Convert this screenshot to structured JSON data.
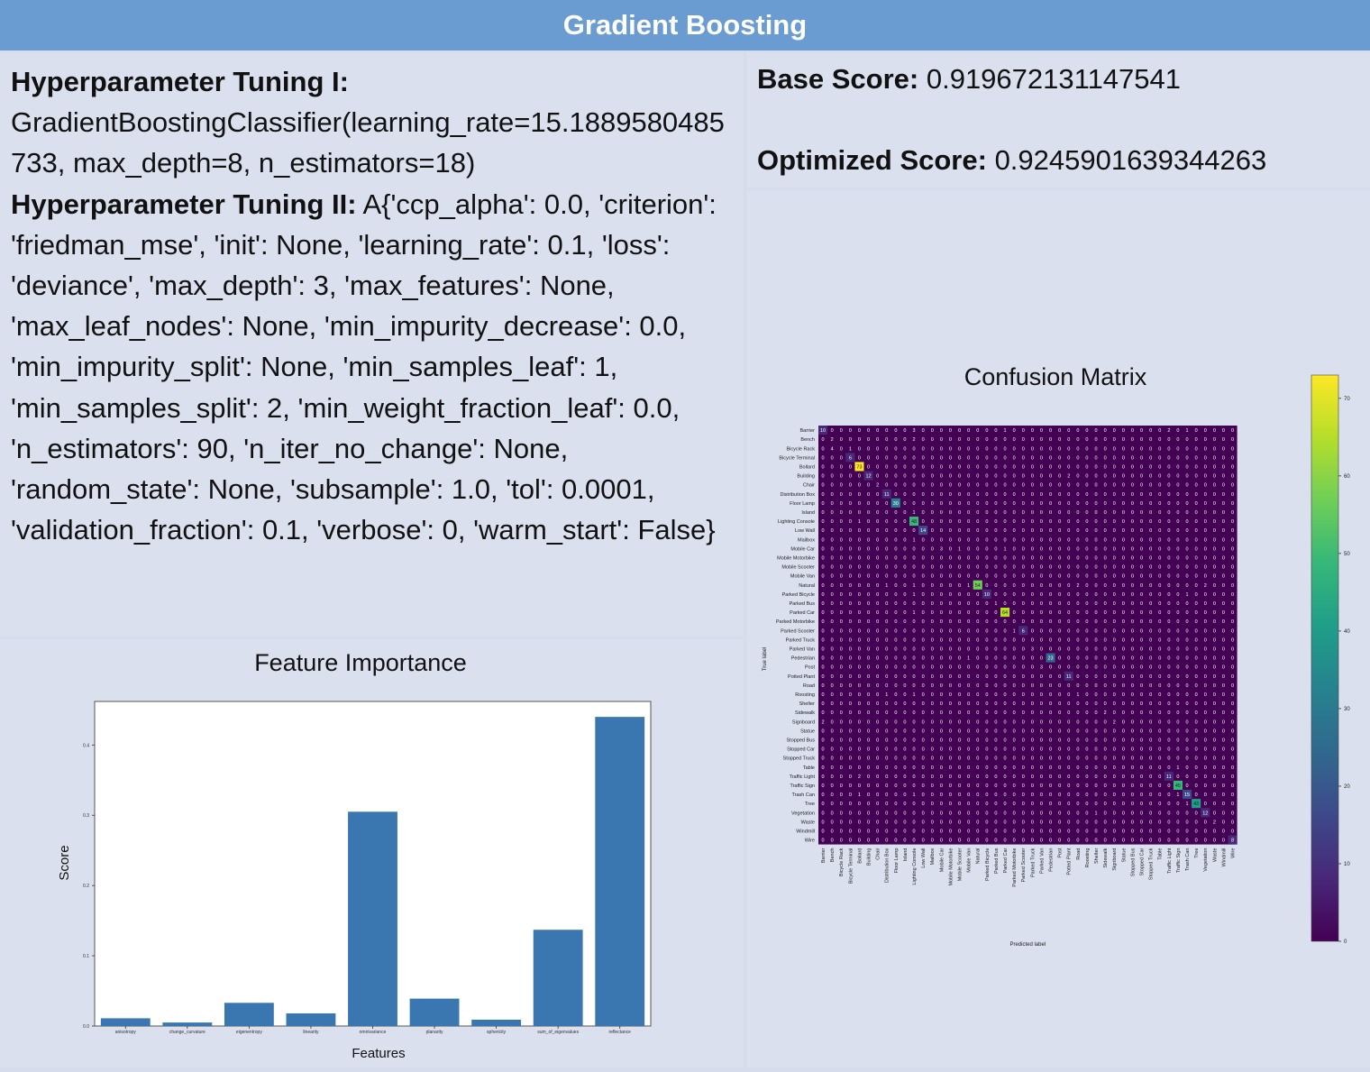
{
  "header": {
    "title": "Gradient Boosting"
  },
  "tuning1": {
    "label": "Hyperparameter Tuning I:",
    "text": "GradientBoostingClassifier(learning_rate=15.1889580485733, max_depth=8, n_estimators=18)"
  },
  "tuning2": {
    "label": "Hyperparameter Tuning II:",
    "text": "A{'ccp_alpha': 0.0, 'criterion': 'friedman_mse', 'init': None, 'learning_rate': 0.1, 'loss': 'deviance', 'max_depth': 3, 'max_features': None, 'max_leaf_nodes': None, 'min_impurity_decrease': 0.0, 'min_impurity_split': None, 'min_samples_leaf': 1, 'min_samples_split': 2, 'min_weight_fraction_leaf': 0.0, 'n_estimators': 90, 'n_iter_no_change': None, 'random_state': None, 'subsample': 1.0, 'tol': 0.0001, 'validation_fraction': 0.1, 'verbose': 0, 'warm_start': False}"
  },
  "scores": {
    "base_label": "Base Score:",
    "base_value": "0.919672131147541",
    "opt_label": "Optimized Score:",
    "opt_value": "0.9245901639344263"
  },
  "chart_data": [
    {
      "type": "bar",
      "title": "Feature Importance",
      "xlabel": "Features",
      "ylabel": "Score",
      "categories": [
        "anisotropy",
        "change_curvature",
        "eigenentropy",
        "linearity",
        "omnivariance",
        "planarity",
        "sphericity",
        "sum_of_eigenvalues",
        "reflectance"
      ],
      "values": [
        0.011,
        0.005,
        0.033,
        0.018,
        0.305,
        0.039,
        0.009,
        0.137,
        0.44
      ],
      "yticks": [
        "0.0",
        "0.1",
        "0.2",
        "0.3",
        "0.4"
      ],
      "ylim": [
        0,
        0.462
      ],
      "color": "#3a76af"
    },
    {
      "type": "heatmap",
      "title": "Confusion Matrix",
      "xlabel": "Predicted label",
      "ylabel": "True label",
      "labels": [
        "Barrier",
        "Bench",
        "Bicycle Rack",
        "Bicycle Terminal",
        "Bollard",
        "Building",
        "Chair",
        "Distribution Box",
        "Floor Lamp",
        "Island",
        "Lighting Console",
        "Low Wall",
        "Mailbox",
        "Mobile Car",
        "Mobile Motorbike",
        "Mobile Scooter",
        "Mobile Van",
        "Natural",
        "Parked Bicycle",
        "Parked Bus",
        "Parked Car",
        "Parked Motorbike",
        "Parked Scooter",
        "Parked Truck",
        "Parked Van",
        "Pedestrian",
        "Post",
        "Potted Plant",
        "Road",
        "Roosting",
        "Shelter",
        "Sidewalk",
        "Signboard",
        "Statue",
        "Stopped Bus",
        "Stopped Car",
        "Stopped Truck",
        "Table",
        "Traffic Light",
        "Traffic Sign",
        "Trash Can",
        "Tree",
        "Vegetation",
        "Waste",
        "Windmill",
        "Wire"
      ],
      "cells": [
        [
          0,
          0,
          10
        ],
        [
          0,
          10,
          3
        ],
        [
          0,
          20,
          1
        ],
        [
          0,
          38,
          2
        ],
        [
          0,
          40,
          1
        ],
        [
          1,
          1,
          2
        ],
        [
          1,
          10,
          2
        ],
        [
          2,
          1,
          4
        ],
        [
          2,
          3,
          1
        ],
        [
          3,
          3,
          6
        ],
        [
          4,
          4,
          73
        ],
        [
          5,
          5,
          12
        ],
        [
          5,
          27,
          2
        ],
        [
          6,
          6,
          2
        ],
        [
          7,
          7,
          11
        ],
        [
          8,
          8,
          30
        ],
        [
          9,
          10,
          1
        ],
        [
          10,
          4,
          1
        ],
        [
          10,
          10,
          48
        ],
        [
          11,
          11,
          14
        ],
        [
          12,
          10,
          1
        ],
        [
          13,
          13,
          3
        ],
        [
          13,
          15,
          1
        ],
        [
          13,
          20,
          1
        ],
        [
          17,
          7,
          1
        ],
        [
          17,
          10,
          1
        ],
        [
          17,
          16,
          1
        ],
        [
          17,
          17,
          54
        ],
        [
          17,
          28,
          2
        ],
        [
          17,
          42,
          2
        ],
        [
          18,
          10,
          1
        ],
        [
          18,
          18,
          10
        ],
        [
          18,
          40,
          1
        ],
        [
          19,
          19,
          1
        ],
        [
          20,
          10,
          1
        ],
        [
          20,
          20,
          64
        ],
        [
          22,
          21,
          1
        ],
        [
          22,
          22,
          6
        ],
        [
          24,
          23,
          3
        ],
        [
          25,
          16,
          1
        ],
        [
          25,
          25,
          23
        ],
        [
          26,
          24,
          3
        ],
        [
          27,
          27,
          11
        ],
        [
          29,
          7,
          1
        ],
        [
          29,
          10,
          1
        ],
        [
          29,
          28,
          1
        ],
        [
          31,
          31,
          2
        ],
        [
          32,
          0,
          2
        ],
        [
          32,
          32,
          2
        ],
        [
          37,
          39,
          1
        ],
        [
          38,
          4,
          2
        ],
        [
          38,
          38,
          11
        ],
        [
          39,
          39,
          45
        ],
        [
          40,
          4,
          1
        ],
        [
          40,
          10,
          1
        ],
        [
          40,
          39,
          1
        ],
        [
          40,
          40,
          15
        ],
        [
          41,
          40,
          1
        ],
        [
          41,
          41,
          43
        ],
        [
          42,
          30,
          1
        ],
        [
          42,
          42,
          12
        ],
        [
          43,
          43,
          2
        ],
        [
          45,
          45,
          8
        ]
      ],
      "colorbar_ticks": [
        "0",
        "10",
        "20",
        "30",
        "40",
        "50",
        "60",
        "70"
      ],
      "vmax": 73
    }
  ]
}
